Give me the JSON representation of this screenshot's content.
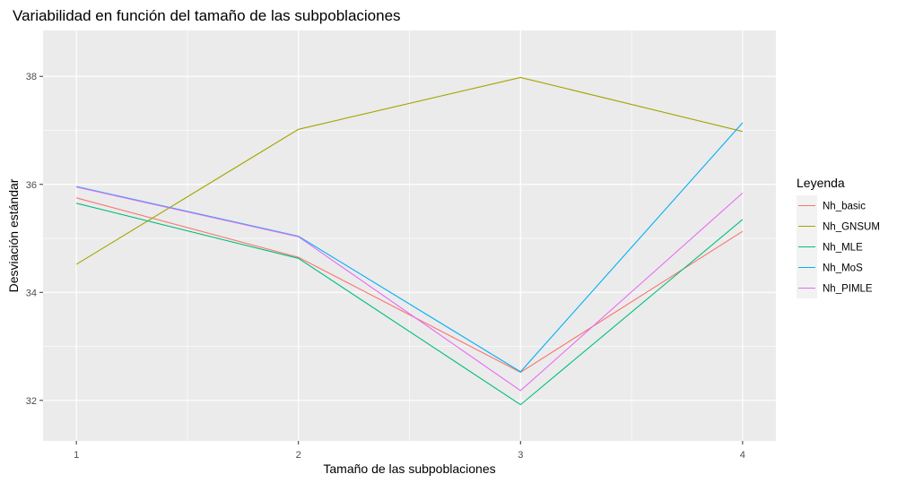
{
  "chart_data": {
    "type": "line",
    "title": "Variabilidad en función del tamaño de las subpoblaciones",
    "xlabel": "Tamaño de las subpoblaciones",
    "ylabel": "Desviación estándar",
    "x": [
      1,
      2,
      3,
      4
    ],
    "xticks": [
      "1",
      "2",
      "3",
      "4"
    ],
    "xlim": [
      0.85,
      4.15
    ],
    "ylim": [
      31.25,
      38.85
    ],
    "yticks": [
      32,
      34,
      36,
      38
    ],
    "grid": true,
    "panel_background": "#ebebeb",
    "legend": {
      "title": "Leyenda",
      "position": "right"
    },
    "series": [
      {
        "name": "Nh_basic",
        "color": "#f8766d",
        "values": [
          35.75,
          34.65,
          32.52,
          35.13
        ]
      },
      {
        "name": "Nh_GNSUM",
        "color": "#a3a500",
        "values": [
          34.52,
          37.02,
          37.98,
          36.98
        ]
      },
      {
        "name": "Nh_MLE",
        "color": "#00bf7d",
        "values": [
          35.65,
          34.63,
          31.92,
          35.35
        ]
      },
      {
        "name": "Nh_MoS",
        "color": "#00b0f6",
        "values": [
          35.96,
          35.04,
          32.53,
          37.14
        ]
      },
      {
        "name": "Nh_PIMLE",
        "color": "#e76bf3",
        "values": [
          35.95,
          35.03,
          32.18,
          35.84
        ]
      }
    ]
  }
}
